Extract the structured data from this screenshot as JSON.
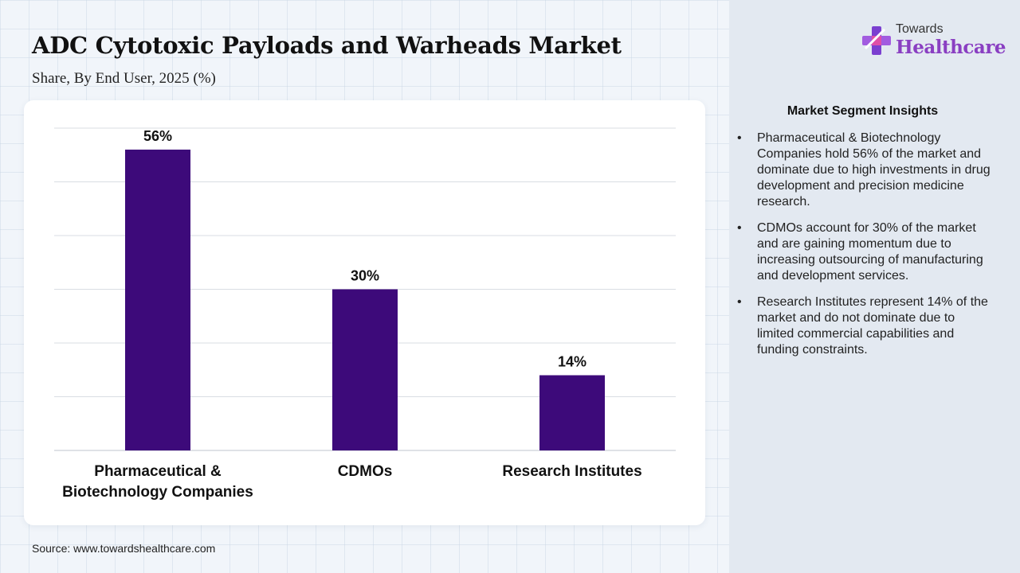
{
  "header": {
    "title": "ADC Cytotoxic Payloads and Warheads Market",
    "subtitle": "Share, By End User, 2025 (%)"
  },
  "logo": {
    "top_text": "Towards",
    "main_text": "Healthcare",
    "icon": "medical-cross-icon"
  },
  "chart_data": {
    "type": "bar",
    "categories": [
      "Pharmaceutical & Biotechnology Companies",
      "CDMOs",
      "Research Institutes"
    ],
    "category_label_lines": [
      [
        "Pharmaceutical &",
        "Biotechnology Companies"
      ],
      [
        "CDMOs"
      ],
      [
        "Research Institutes"
      ]
    ],
    "values": [
      56,
      30,
      14
    ],
    "value_labels": [
      "56%",
      "30%",
      "14%"
    ],
    "title": "",
    "xlabel": "",
    "ylabel": "",
    "ylim": [
      0,
      60
    ],
    "grid": true,
    "bar_color": "#3d0a7a"
  },
  "insights": {
    "title": "Market Segment Insights",
    "items": [
      "Pharmaceutical & Biotechnology Companies hold 56% of the market and dominate due to high investments in drug development and precision medicine research.",
      "CDMOs account for 30% of the market and are gaining momentum due to increasing outsourcing of manufacturing and development services.",
      "Research Institutes represent 14% of the market and do not dominate due to limited commercial capabilities and funding constraints."
    ]
  },
  "footer": {
    "source": "Source: www.towardshealthcare.com"
  }
}
